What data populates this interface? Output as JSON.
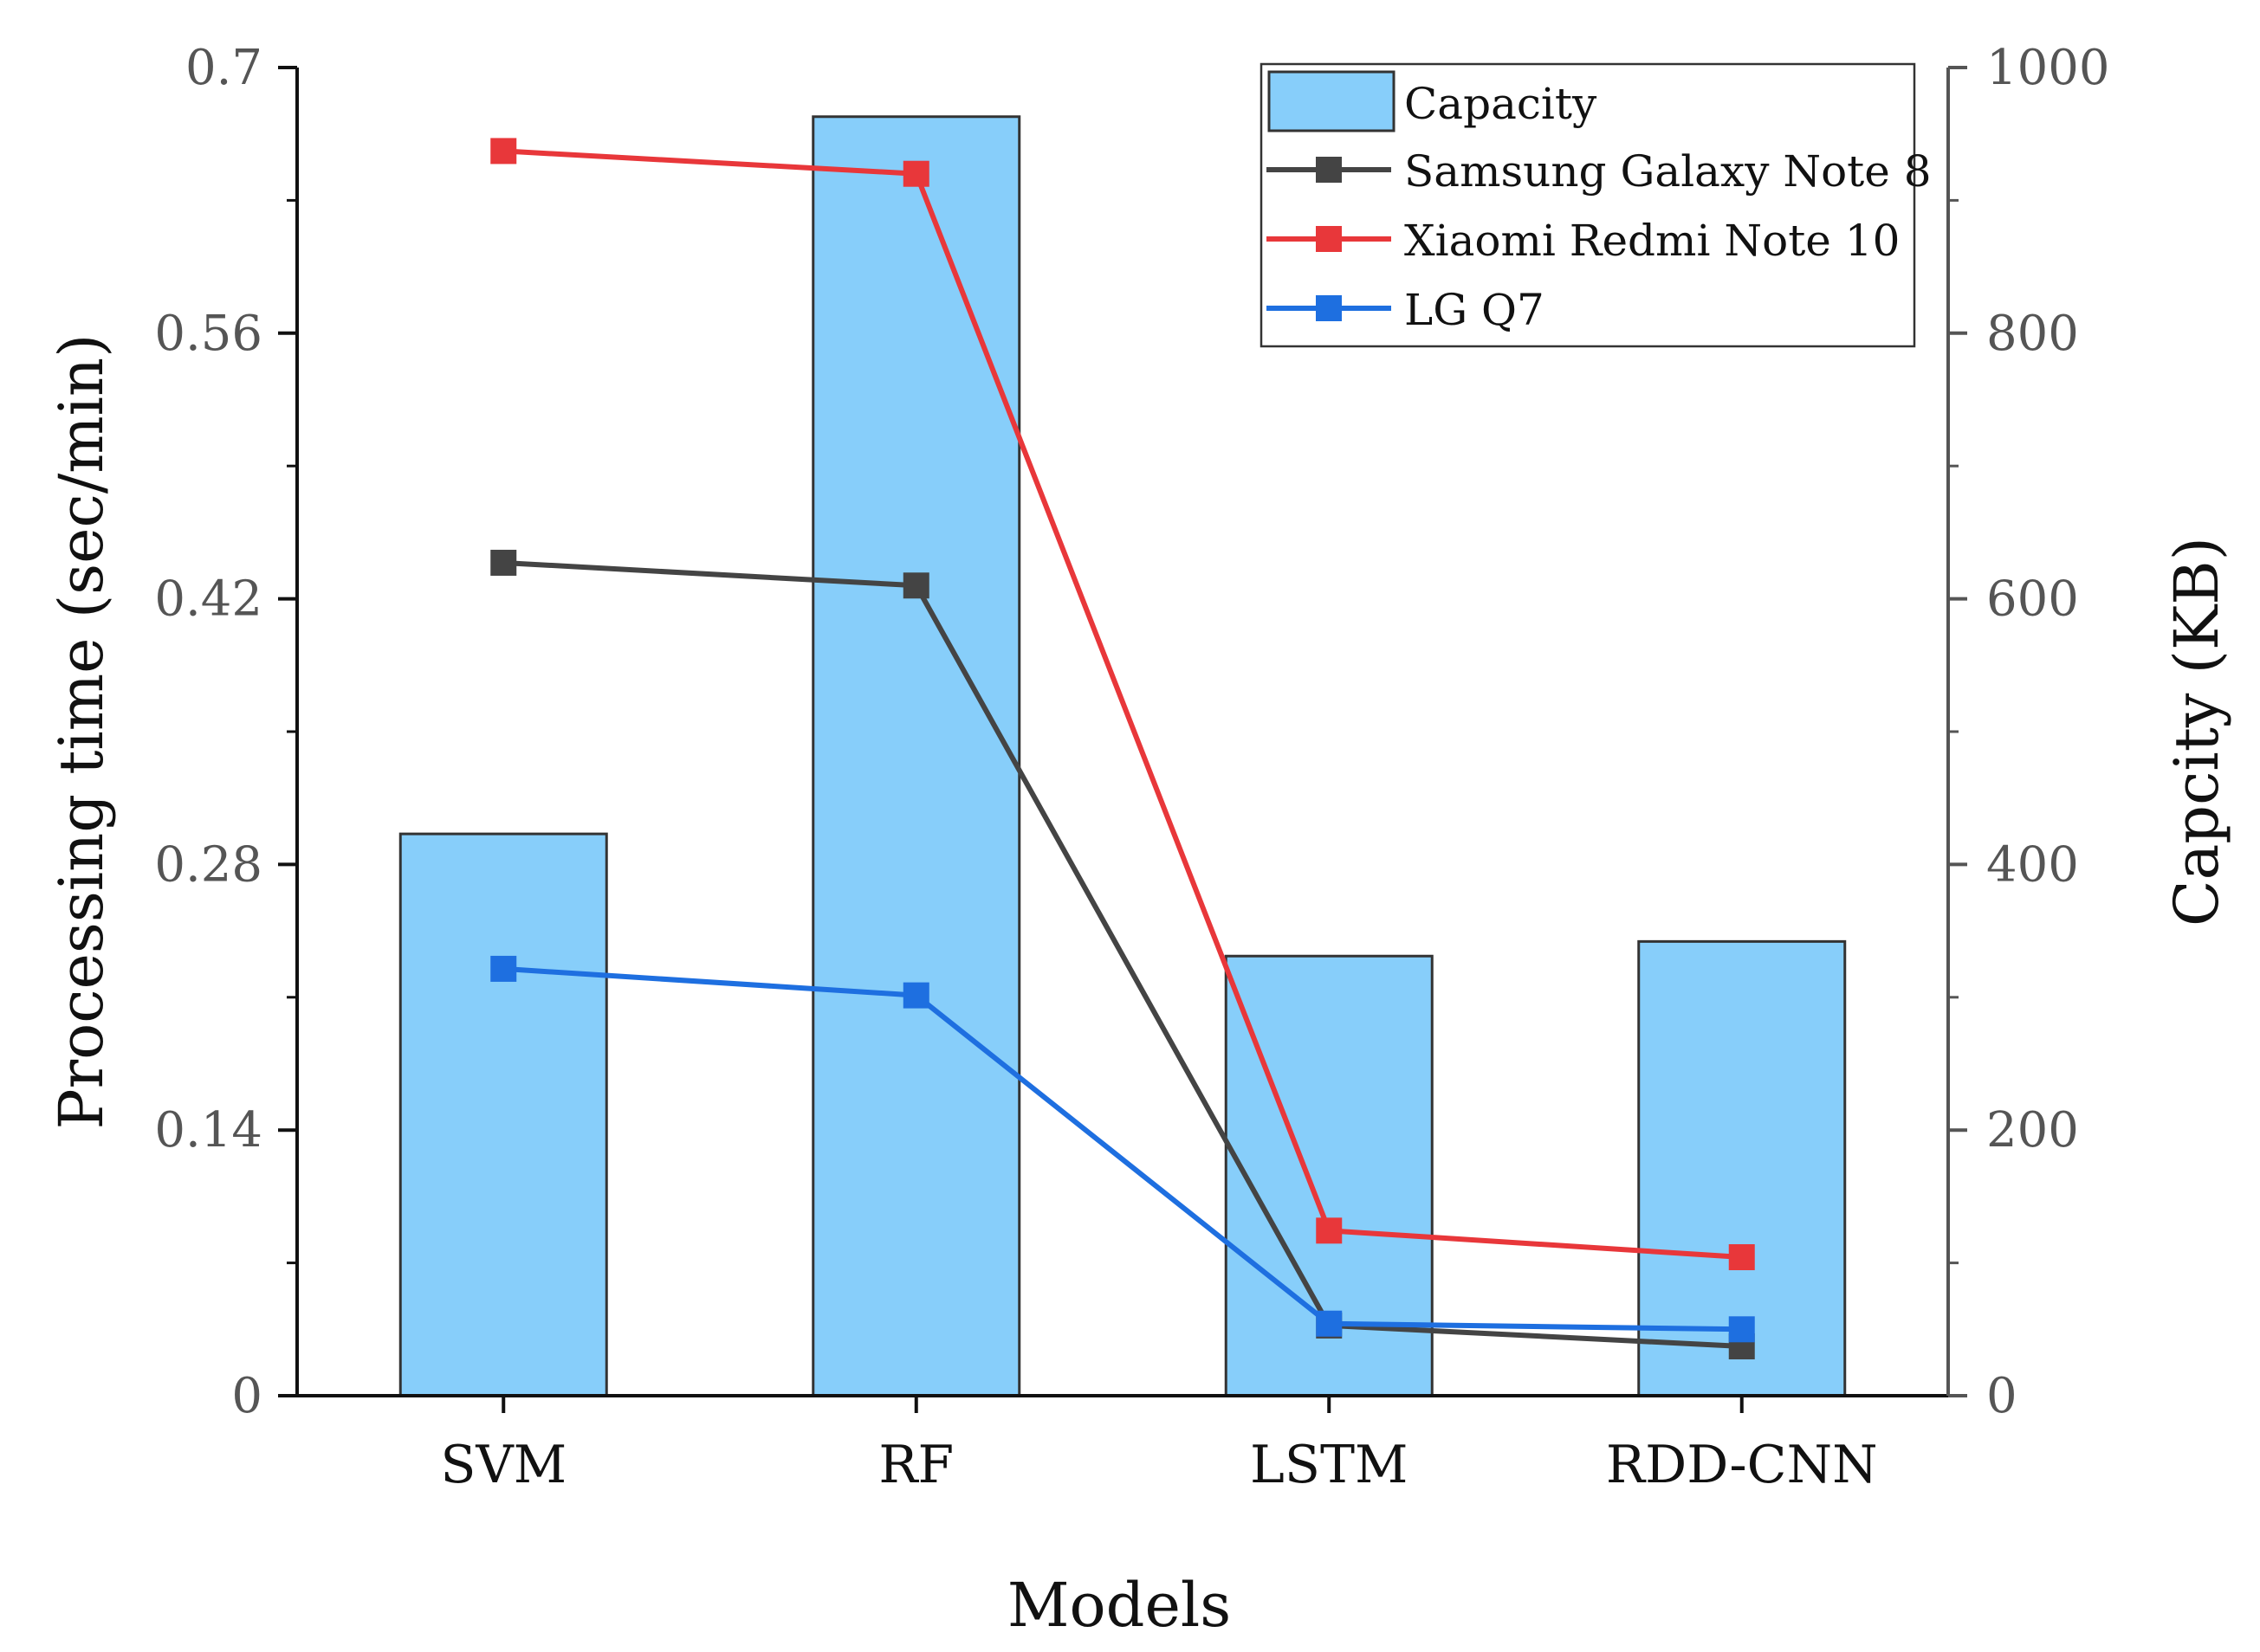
{
  "chart_data": {
    "type": "bar+line",
    "title": "",
    "xlabel": "Models",
    "ylabel": "Processing time (sec/min)",
    "y2label": "Capcity (KB)",
    "categories": [
      "SVM",
      "RF",
      "LSTM",
      "RDD-CNN"
    ],
    "ylim": [
      0,
      0.7
    ],
    "y_ticks": [
      0,
      0.14,
      0.28,
      0.42,
      0.56,
      0.7
    ],
    "y_tick_labels": [
      "0",
      "0.14",
      "0.28",
      "0.42",
      "0.56",
      "0.7"
    ],
    "y2lim": [
      0,
      1000
    ],
    "y2_ticks": [
      0,
      200,
      400,
      600,
      800,
      1000
    ],
    "y2_tick_labels": [
      "0",
      "200",
      "400",
      "600",
      "800",
      "1000"
    ],
    "bars": {
      "name": "Capacity",
      "axis": "right",
      "color": "#87CEFA",
      "values": [
        423,
        963,
        331,
        342
      ]
    },
    "series": [
      {
        "name": "Samsung Galaxy Note 8",
        "axis": "left",
        "color": "#444444",
        "values": [
          0.439,
          0.427,
          0.037,
          0.026
        ]
      },
      {
        "name": "Xiaomi Redmi Note 10",
        "axis": "left",
        "color": "#E8373A",
        "values": [
          0.656,
          0.644,
          0.087,
          0.073
        ]
      },
      {
        "name": "LG Q7",
        "axis": "left",
        "color": "#1E6FE0",
        "values": [
          0.225,
          0.211,
          0.038,
          0.035
        ]
      }
    ],
    "legend_position": "top-right"
  }
}
